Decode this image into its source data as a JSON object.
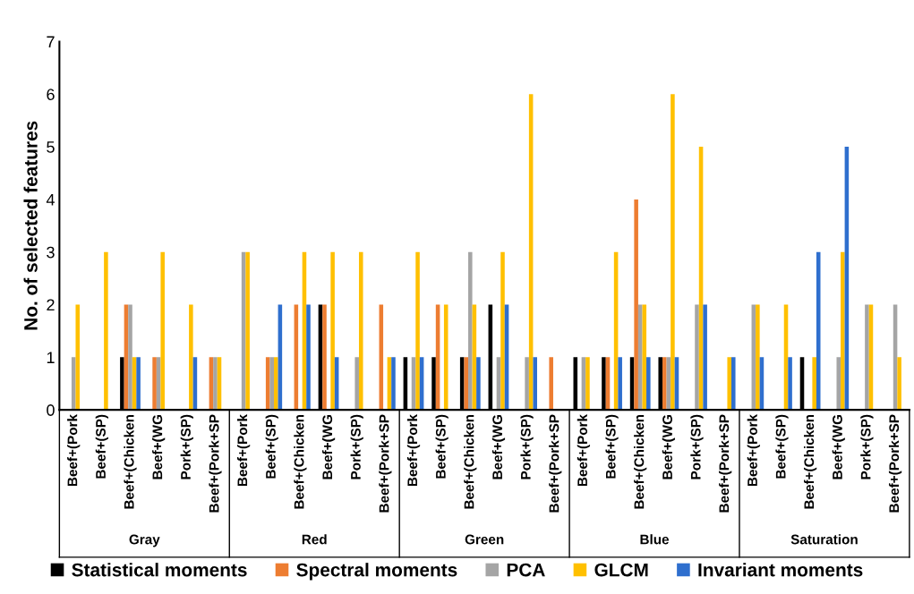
{
  "chart_data": {
    "type": "bar",
    "ylabel": "No. of selected features",
    "categories": [
      "Beef+(Pork",
      "Beef+(SP)",
      "Beef+(Chicken",
      "Beef+(WG",
      "Pork+(SP)",
      "Beef+(Pork+SP",
      "Beef+(Pork",
      "Beef+(SP)",
      "Beef+(Chicken",
      "Beef+(WG",
      "Pork+(SP)",
      "Beef+(Pork+SP",
      "Beef+(Pork",
      "Beef+(SP)",
      "Beef+(Chicken",
      "Beef+(WG",
      "Pork+(SP)",
      "Beef+(Pork+SP",
      "Beef+(Pork",
      "Beef+(SP)",
      "Beef+(Chicken",
      "Beef+(WG",
      "Pork+(SP)",
      "Beef+(Pork+SP",
      "Beef+(Pork",
      "Beef+(SP)",
      "Beef+(Chicken",
      "Beef+(WG",
      "Pork+(SP)",
      "Beef+(Pork+SP"
    ],
    "series": [
      {
        "name": "Statistical moments",
        "color": "#000000",
        "values": [
          0,
          0,
          1,
          0,
          0,
          0,
          0,
          0,
          0,
          2,
          0,
          0,
          1,
          1,
          1,
          2,
          0,
          0,
          1,
          1,
          1,
          1,
          0,
          0,
          0,
          0,
          1,
          0,
          0,
          0
        ]
      },
      {
        "name": "Spectral moments",
        "color": "#ed7d31",
        "values": [
          0,
          0,
          2,
          1,
          0,
          1,
          0,
          1,
          2,
          2,
          0,
          2,
          0,
          2,
          1,
          0,
          0,
          1,
          0,
          1,
          4,
          1,
          0,
          0,
          0,
          0,
          0,
          0,
          0,
          0
        ]
      },
      {
        "name": "PCA",
        "color": "#a5a5a5",
        "values": [
          1,
          0,
          2,
          1,
          0,
          1,
          3,
          1,
          0,
          0,
          1,
          0,
          1,
          0,
          3,
          1,
          1,
          0,
          1,
          0,
          2,
          1,
          2,
          0,
          2,
          0,
          0,
          1,
          2,
          2
        ]
      },
      {
        "name": "GLCM",
        "color": "#ffc000",
        "values": [
          2,
          3,
          1,
          3,
          2,
          1,
          3,
          1,
          3,
          3,
          3,
          1,
          3,
          2,
          2,
          3,
          6,
          0,
          1,
          3,
          2,
          6,
          5,
          1,
          2,
          2,
          1,
          3,
          2,
          1
        ]
      },
      {
        "name": "Invariant moments",
        "color": "#2f6fce",
        "values": [
          0,
          0,
          1,
          0,
          1,
          0,
          0,
          2,
          2,
          1,
          0,
          1,
          1,
          0,
          1,
          2,
          1,
          0,
          0,
          1,
          1,
          1,
          2,
          1,
          1,
          1,
          3,
          5,
          0,
          0
        ]
      }
    ],
    "annotations": [
      "Gray",
      "Red",
      "Green",
      "Blue",
      "Saturation"
    ],
    "ylim": [
      0,
      7
    ],
    "yticks": [
      0,
      1,
      2,
      3,
      4,
      5,
      6,
      7
    ],
    "grid": false,
    "legend": "bottom"
  }
}
